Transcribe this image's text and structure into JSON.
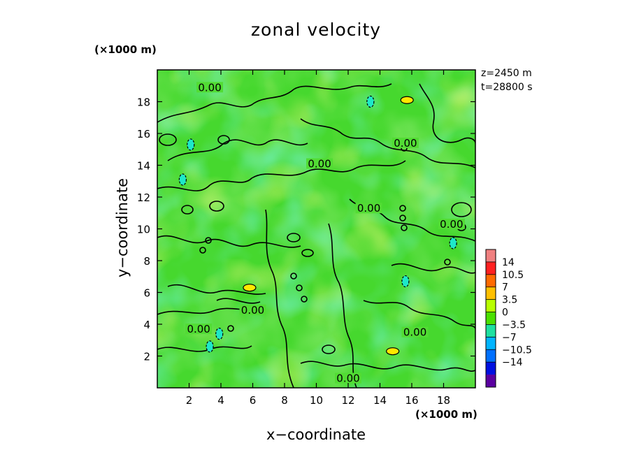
{
  "chart_data": {
    "type": "heatmap",
    "title": "zonal velocity",
    "xlabel": "x−coordinate",
    "ylabel": "y−coordinate",
    "x_unit": "(×1000 m)",
    "y_unit": "(×1000 m)",
    "info": [
      "z=2450  m",
      "t=28800  s"
    ],
    "xlim": [
      0,
      20
    ],
    "ylim": [
      0,
      20
    ],
    "xticks": [
      "2",
      "4",
      "6",
      "8",
      "10",
      "12",
      "14",
      "16",
      "18"
    ],
    "yticks": [
      "2",
      "4",
      "6",
      "8",
      "10",
      "12",
      "14",
      "16",
      "18"
    ],
    "colorbar": {
      "tick_labels": [
        "14",
        "10.5",
        "7",
        "3.5",
        "0",
        "−3.5",
        "−7",
        "−10.5",
        "−14"
      ],
      "levels": [
        14,
        10.5,
        7,
        3.5,
        0,
        -3.5,
        -7,
        -10.5,
        -14
      ],
      "colors": [
        "#f08080",
        "#ff2020",
        "#ff6a00",
        "#ffc000",
        "#b8ff00",
        "#4be000",
        "#1ee0a0",
        "#00b4ff",
        "#0070ff",
        "#0010e0",
        "#5a00a0"
      ]
    },
    "contour_labels": [
      {
        "text": "0.00",
        "x": 3.3,
        "y": 18.8
      },
      {
        "text": "0.00",
        "x": 10.2,
        "y": 14.0
      },
      {
        "text": "0.00",
        "x": 15.6,
        "y": 15.3
      },
      {
        "text": "0.00",
        "x": 13.3,
        "y": 11.2
      },
      {
        "text": "0.00",
        "x": 18.5,
        "y": 10.2
      },
      {
        "text": "0.00",
        "x": 6.0,
        "y": 4.8
      },
      {
        "text": "0.00",
        "x": 2.6,
        "y": 3.6
      },
      {
        "text": "0.00",
        "x": 16.2,
        "y": 3.4
      },
      {
        "text": "0.00",
        "x": 12.0,
        "y": 0.5
      }
    ],
    "features": [
      {
        "kind": "positive",
        "x": 15.7,
        "y": 18.1,
        "value": 7
      },
      {
        "kind": "positive",
        "x": 5.8,
        "y": 6.3,
        "value": 7
      },
      {
        "kind": "positive",
        "x": 14.8,
        "y": 2.3,
        "value": 7
      },
      {
        "kind": "negative",
        "x": 13.4,
        "y": 18.0,
        "value": -7
      },
      {
        "kind": "negative",
        "x": 2.1,
        "y": 15.3,
        "value": -7
      },
      {
        "kind": "negative",
        "x": 1.6,
        "y": 13.1,
        "value": -7
      },
      {
        "kind": "negative",
        "x": 3.3,
        "y": 2.6,
        "value": -7
      },
      {
        "kind": "negative",
        "x": 3.9,
        "y": 3.4,
        "value": -7
      },
      {
        "kind": "negative",
        "x": 15.6,
        "y": 6.7,
        "value": -7
      },
      {
        "kind": "negative",
        "x": 18.6,
        "y": 9.1,
        "value": -7
      }
    ]
  }
}
